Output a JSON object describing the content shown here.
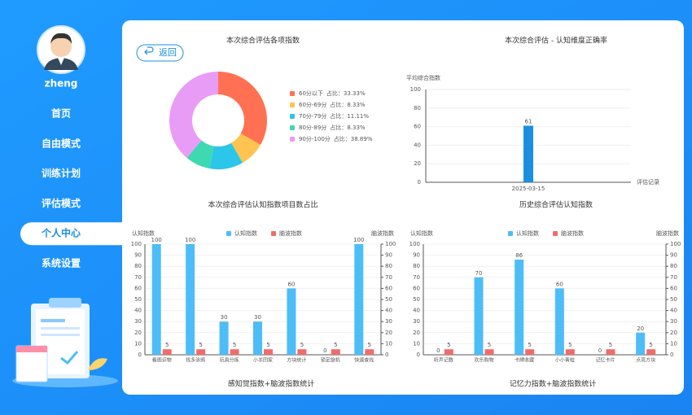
{
  "user": {
    "name": "zheng"
  },
  "menu": [
    "首页",
    "自由模式",
    "训练计划",
    "评估模式",
    "个人中心",
    "系统设置"
  ],
  "active_menu": 4,
  "back_button": "返回",
  "chart_data": [
    {
      "type": "pie",
      "title": "本次综合评估各项指数",
      "donut": true,
      "categories": [
        "60分以下",
        "60分-69分",
        "70分-79分",
        "80分-89分",
        "90分-100分"
      ],
      "values": [
        33.33,
        8.33,
        11.11,
        8.33,
        38.89
      ],
      "value_labels": [
        "占比：33.33%",
        "占比：8.33%",
        "占比：11.11%",
        "占比：8.33%",
        "占比：38.89%"
      ],
      "colors": [
        "#ff7152",
        "#ffc34f",
        "#2bc6e9",
        "#3ed8b1",
        "#e99cf6"
      ]
    },
    {
      "type": "bar",
      "title": "本次综合评估 - 认知维度正确率",
      "y_label": "平均综合指数",
      "x_label": "评估记录",
      "categories": [
        "2025-03-15"
      ],
      "values": [
        61
      ],
      "color": "#1b8fdf",
      "ylim": [
        0,
        100
      ],
      "yticks": [
        0,
        20,
        40,
        60,
        80,
        100
      ],
      "grid": true
    },
    {
      "type": "dual_bar",
      "title": "本次综合评估认知指数项目数占比",
      "caption": "感知觉指数+脑波指数统计",
      "y_label": "认知指数",
      "y2_label": "脑波指数",
      "categories": [
        "看图识物",
        "找多涂鸦",
        "玩具分拣",
        "小羊回家",
        "方块统计",
        "锁定旋机",
        "快速查找"
      ],
      "series": [
        {
          "name": "认知指数",
          "color": "#4dbdf8",
          "values": [
            100,
            100,
            30,
            30,
            60,
            0,
            100
          ]
        },
        {
          "name": "脑波指数",
          "color": "#f26b6b",
          "axis": "y2",
          "values": [
            5,
            5,
            5,
            5,
            5,
            5,
            5
          ]
        }
      ],
      "ylim": [
        0,
        100
      ],
      "yticks": [
        0,
        10,
        20,
        30,
        40,
        50,
        60,
        70,
        80,
        90,
        100
      ],
      "y2lim": [
        0,
        100
      ],
      "y2ticks": [
        0,
        10,
        20,
        30,
        40,
        50,
        60,
        70,
        80,
        90,
        100
      ]
    },
    {
      "type": "dual_bar",
      "title": "历史综合评估认知指数",
      "caption": "记忆力指数+脑波指数统计",
      "y_label": "认知指数",
      "y2_label": "脑波指数",
      "categories": [
        "听声记数",
        "欢乐购物",
        "卡牌收藏",
        "小小青蛙",
        "记忆卡片",
        "点亮方块"
      ],
      "series": [
        {
          "name": "认知指数",
          "color": "#4dbdf8",
          "values": [
            0,
            70,
            86,
            60,
            0,
            20
          ]
        },
        {
          "name": "脑波指数",
          "color": "#f26b6b",
          "axis": "y2",
          "values": [
            5,
            5,
            5,
            5,
            5,
            5
          ]
        }
      ],
      "ylim": [
        0,
        100
      ],
      "yticks": [
        0,
        10,
        20,
        30,
        40,
        50,
        60,
        70,
        80,
        90,
        100
      ],
      "y2lim": [
        0,
        100
      ],
      "y2ticks": [
        0,
        10,
        20,
        30,
        40,
        50,
        60,
        70,
        80,
        90,
        100
      ]
    }
  ]
}
